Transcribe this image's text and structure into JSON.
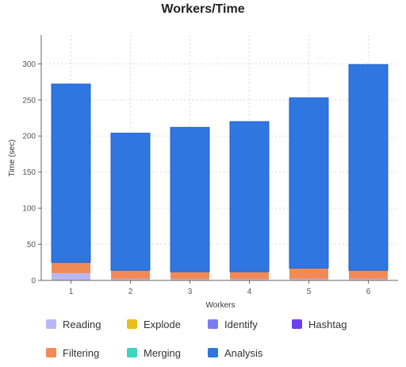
{
  "chart_data": {
    "type": "bar",
    "stacked": true,
    "title": "Workers/Time",
    "xlabel": "Workers",
    "ylabel": "Time (sec)",
    "ylim": [
      0,
      340
    ],
    "yticks": [
      0,
      50,
      100,
      150,
      200,
      250,
      300
    ],
    "categories": [
      "1",
      "2",
      "3",
      "4",
      "5",
      "6"
    ],
    "grid": true,
    "legend_position": "bottom",
    "series": [
      {
        "name": "Reading",
        "color": "#b9b8f7",
        "values": [
          10,
          2,
          2,
          2,
          2,
          2
        ]
      },
      {
        "name": "Explode",
        "color": "#e7bd1b",
        "values": [
          0,
          0,
          0,
          0,
          0,
          0
        ]
      },
      {
        "name": "Identify",
        "color": "#7b7bf5",
        "values": [
          0,
          0,
          0,
          0,
          0,
          0
        ]
      },
      {
        "name": "Hashtag",
        "color": "#6c3ff0",
        "values": [
          0,
          0,
          0,
          0,
          0,
          0
        ]
      },
      {
        "name": "Filtering",
        "color": "#f28a57",
        "values": [
          15,
          12,
          10,
          10,
          15,
          12
        ]
      },
      {
        "name": "Merging",
        "color": "#3bd4c0",
        "values": [
          0,
          0,
          0,
          0,
          0,
          0
        ]
      },
      {
        "name": "Analysis",
        "color": "#2f76e0",
        "values": [
          247,
          190,
          200,
          208,
          236,
          285
        ]
      }
    ]
  }
}
